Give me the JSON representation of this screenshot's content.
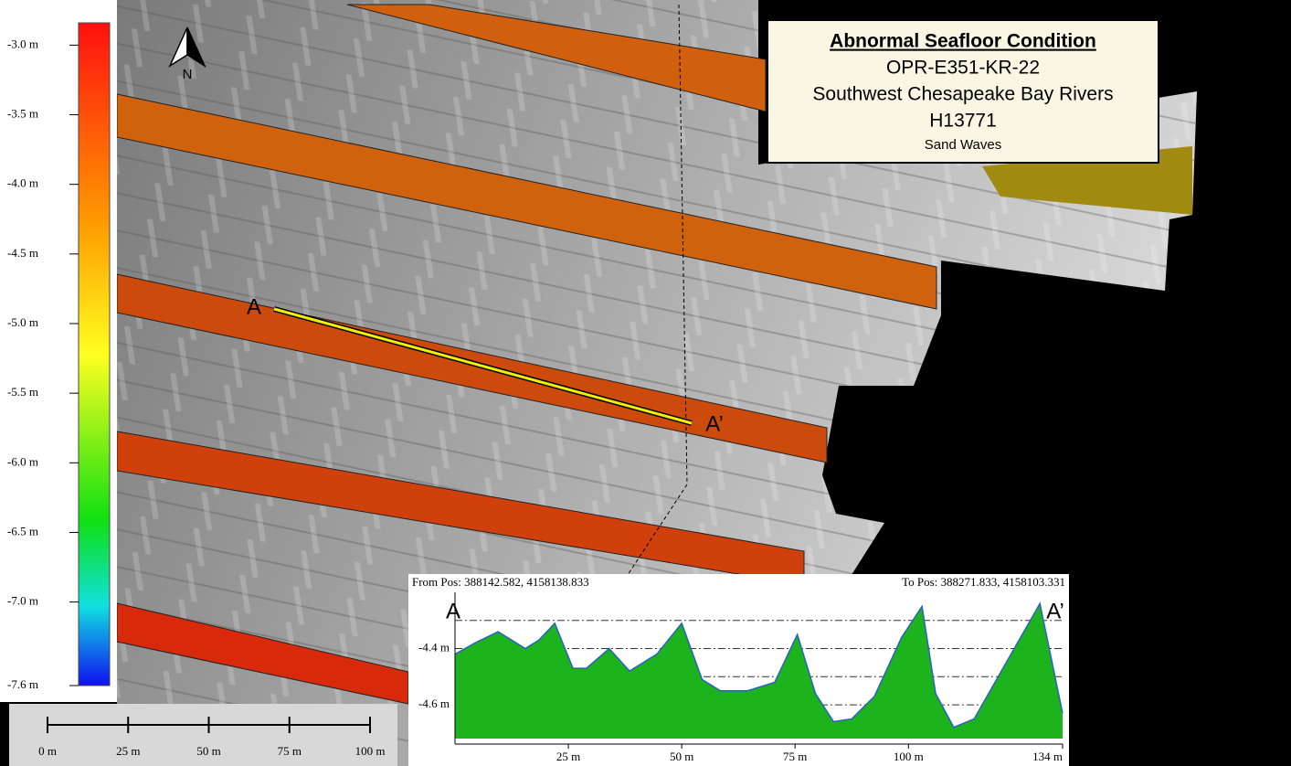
{
  "header": {
    "title": "Abnormal Seafloor Condition",
    "lines": [
      "OPR-E351-KR-22",
      "Southwest Chesapeake Bay Rivers",
      "H13771",
      "Sand Waves"
    ]
  },
  "depth_legend": {
    "limits": [
      -2.84,
      -7.6
    ],
    "ticks": [
      {
        "value": -3.0,
        "label": "-3.0 m"
      },
      {
        "value": -3.5,
        "label": "-3.5 m"
      },
      {
        "value": -4.0,
        "label": "-4.0 m"
      },
      {
        "value": -4.5,
        "label": "-4.5 m"
      },
      {
        "value": -5.0,
        "label": "-5.0 m"
      },
      {
        "value": -5.5,
        "label": "-5.5 m"
      },
      {
        "value": -6.0,
        "label": "-6.0 m"
      },
      {
        "value": -6.5,
        "label": "-6.5 m"
      },
      {
        "value": -7.0,
        "label": "-7.0 m"
      },
      {
        "value": -7.6,
        "label": "-7.6 m"
      }
    ]
  },
  "scale_bar": {
    "ticks": [
      {
        "value": 0,
        "label": "0 m"
      },
      {
        "value": 25,
        "label": "25 m"
      },
      {
        "value": 50,
        "label": "50 m"
      },
      {
        "value": 75,
        "label": "75 m"
      },
      {
        "value": 100,
        "label": "100 m"
      }
    ]
  },
  "map_labels": {
    "north": "N",
    "start": "A",
    "end": "A’"
  },
  "chart_data": {
    "type": "area",
    "annotations": [
      "From Pos: 388142.582, 4158138.833",
      "To Pos: 388271.833, 4158103.331",
      "A",
      "A’"
    ],
    "x": [
      0,
      4.4,
      9.5,
      12.5,
      15.5,
      18.5,
      22,
      26,
      29,
      34,
      38.5,
      44.5,
      50,
      54.5,
      58.5,
      64.5,
      70.5,
      75.5,
      79.5,
      83.5,
      87.5,
      92.5,
      98.5,
      103,
      106,
      110,
      114.5,
      120.5,
      129,
      134
    ],
    "values": [
      -4.42,
      -4.38,
      -4.34,
      -4.37,
      -4.4,
      -4.37,
      -4.31,
      -4.47,
      -4.47,
      -4.4,
      -4.48,
      -4.42,
      -4.31,
      -4.51,
      -4.55,
      -4.55,
      -4.52,
      -4.35,
      -4.56,
      -4.66,
      -4.65,
      -4.57,
      -4.36,
      -4.25,
      -4.56,
      -4.68,
      -4.65,
      -4.48,
      -4.24,
      -4.63
    ],
    "color": "#1db31d",
    "line_color": "#2a5fc8",
    "xlim": [
      0,
      134
    ],
    "ylim": [
      -4.72,
      -4.2
    ],
    "xticks": [
      {
        "value": 25,
        "label": "25 m"
      },
      {
        "value": 50,
        "label": "50 m"
      },
      {
        "value": 75,
        "label": "75 m"
      },
      {
        "value": 100,
        "label": "100 m"
      },
      {
        "value": 134,
        "label": "134 m"
      }
    ],
    "yticks": [
      {
        "value": -4.4,
        "label": "-4.4 m"
      },
      {
        "value": -4.6,
        "label": "-4.6 m"
      }
    ],
    "minor_yticks": [
      -4.3,
      -4.5,
      -4.7
    ],
    "grid": true
  }
}
